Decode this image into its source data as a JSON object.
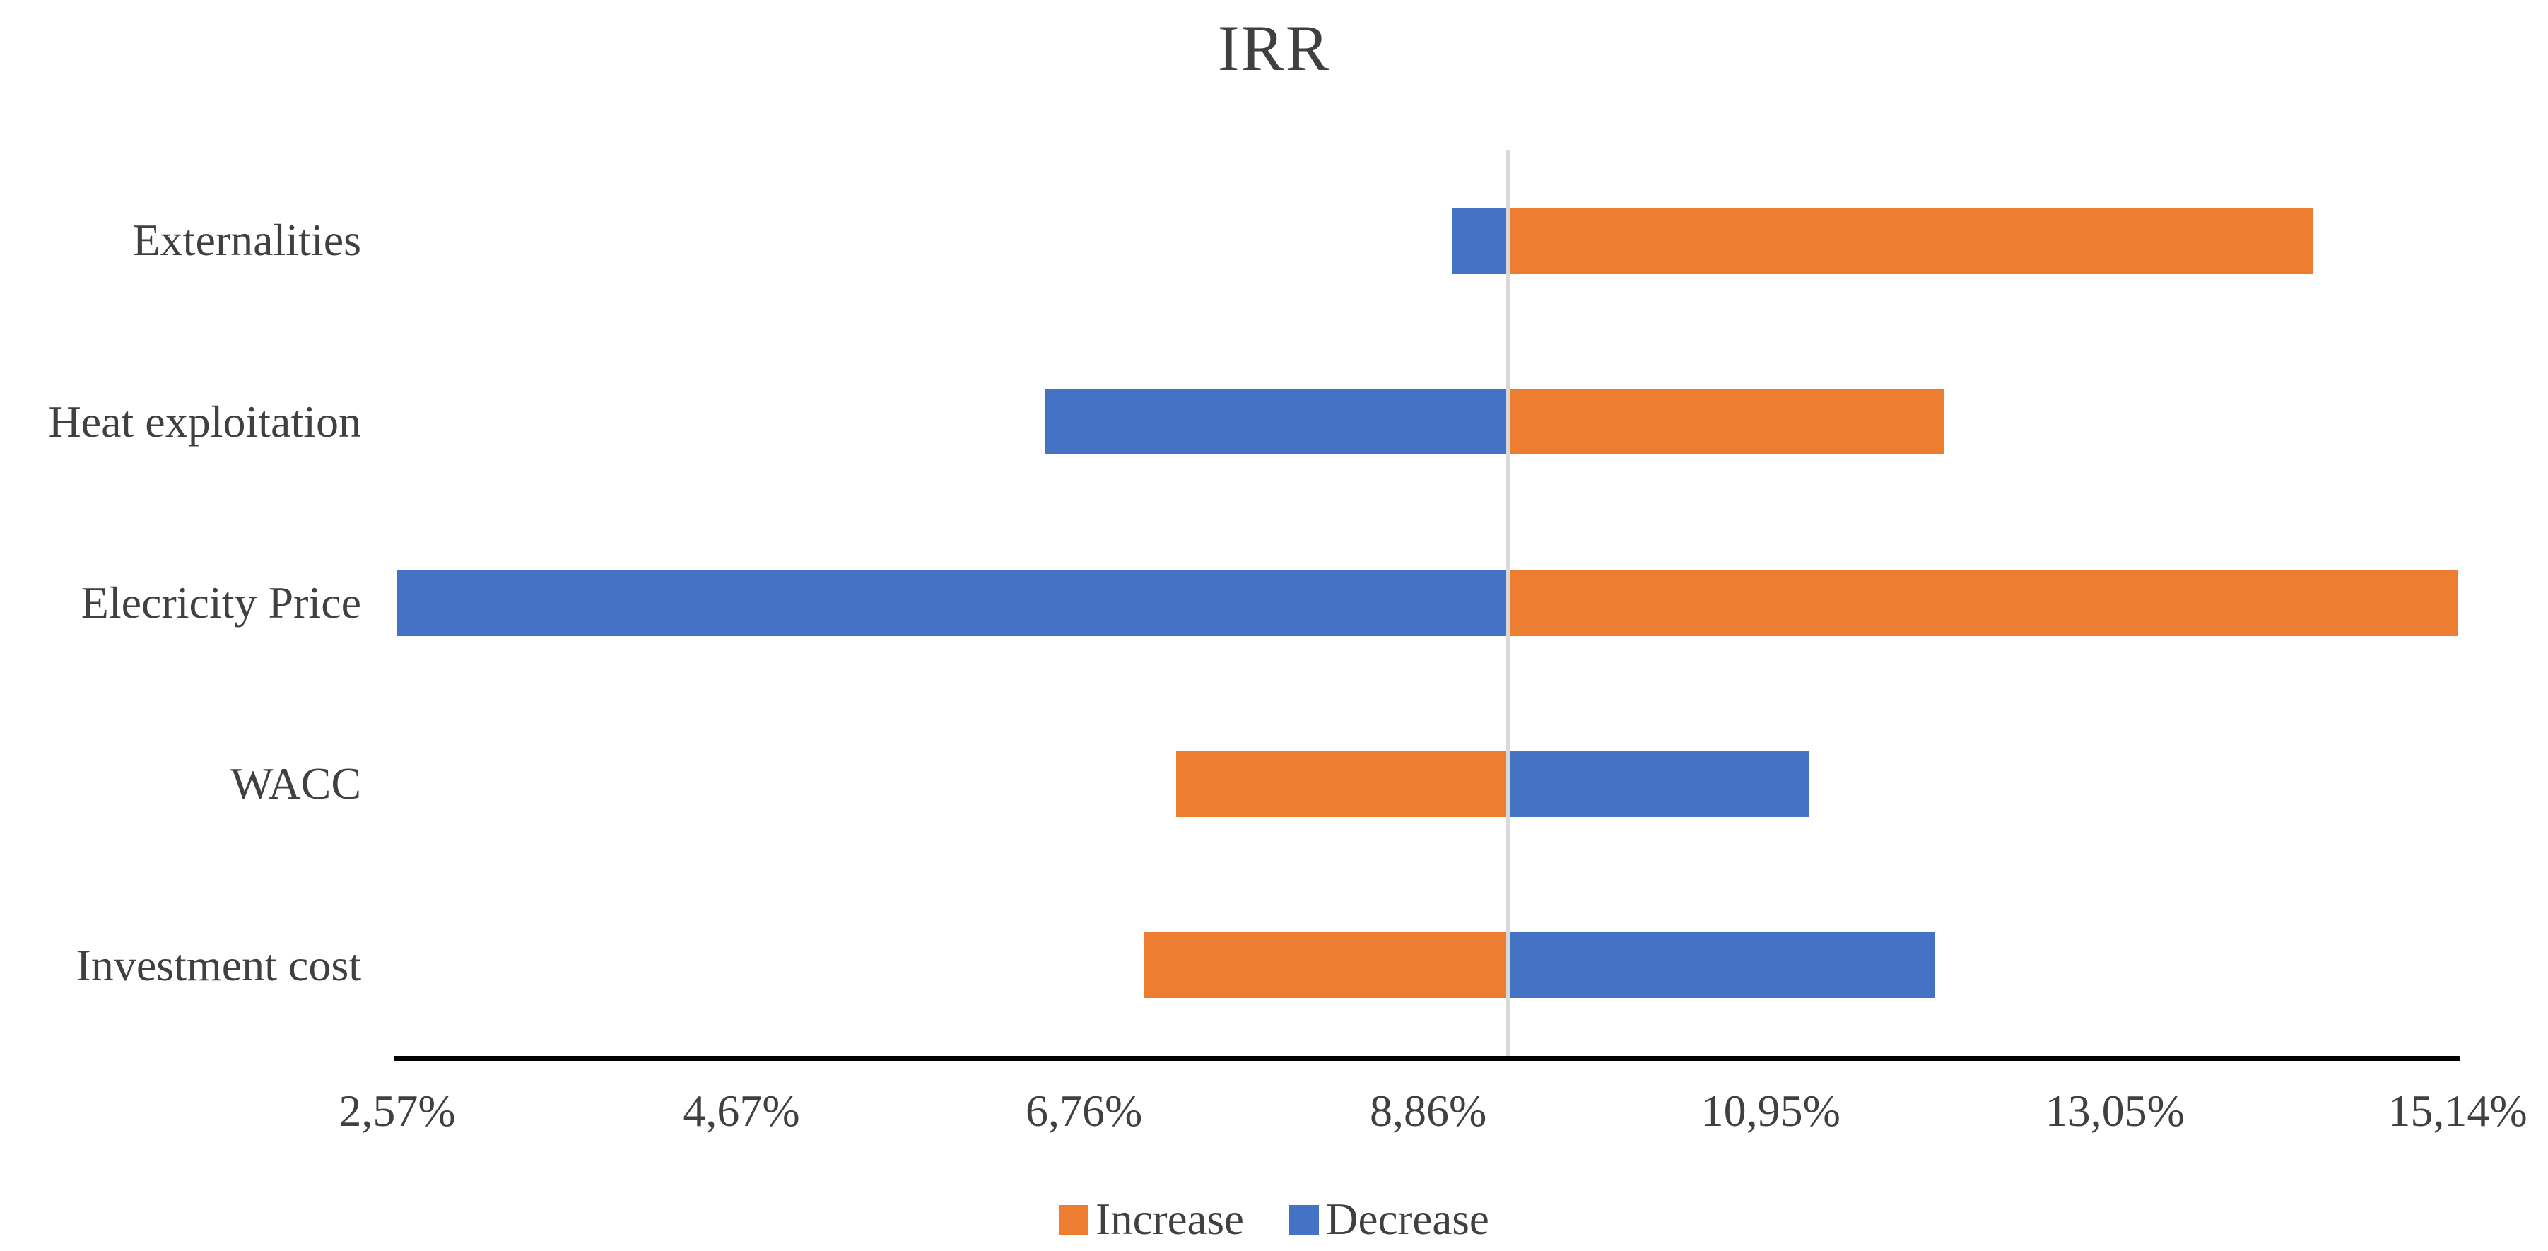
{
  "title": "IRR",
  "chart_data": {
    "type": "bar",
    "subtype": "tornado",
    "orientation": "horizontal",
    "title": "IRR",
    "categories": [
      "Externalities",
      "Heat exploitation",
      "Elecricity Price",
      "WACC",
      "Investment cost"
    ],
    "unit": "%",
    "base_value": 9.35,
    "series": [
      {
        "name": "Increase",
        "color": "#ED7D31",
        "values": [
          14.26,
          12.01,
          15.14,
          7.32,
          7.13
        ]
      },
      {
        "name": "Decrease",
        "color": "#4472C4",
        "values": [
          9.01,
          6.52,
          2.57,
          11.18,
          11.95
        ]
      }
    ],
    "xlim": [
      2.57,
      15.14
    ],
    "ticks": [
      2.57,
      4.67,
      6.76,
      8.86,
      10.95,
      13.05,
      15.14
    ],
    "tick_labels": [
      "2,57%",
      "4,67%",
      "6,76%",
      "8,86%",
      "10,95%",
      "13,05%",
      "15,14%"
    ],
    "legend_position": "bottom",
    "legend_items": [
      {
        "label": "Increase",
        "color": "#ED7D31"
      },
      {
        "label": "Decrease",
        "color": "#4472C4"
      }
    ],
    "grid": {
      "vertical_base_line": true,
      "gridline_color": "#D9D9D9"
    },
    "axis_line_color": "#000000",
    "text_color": "#404040"
  }
}
